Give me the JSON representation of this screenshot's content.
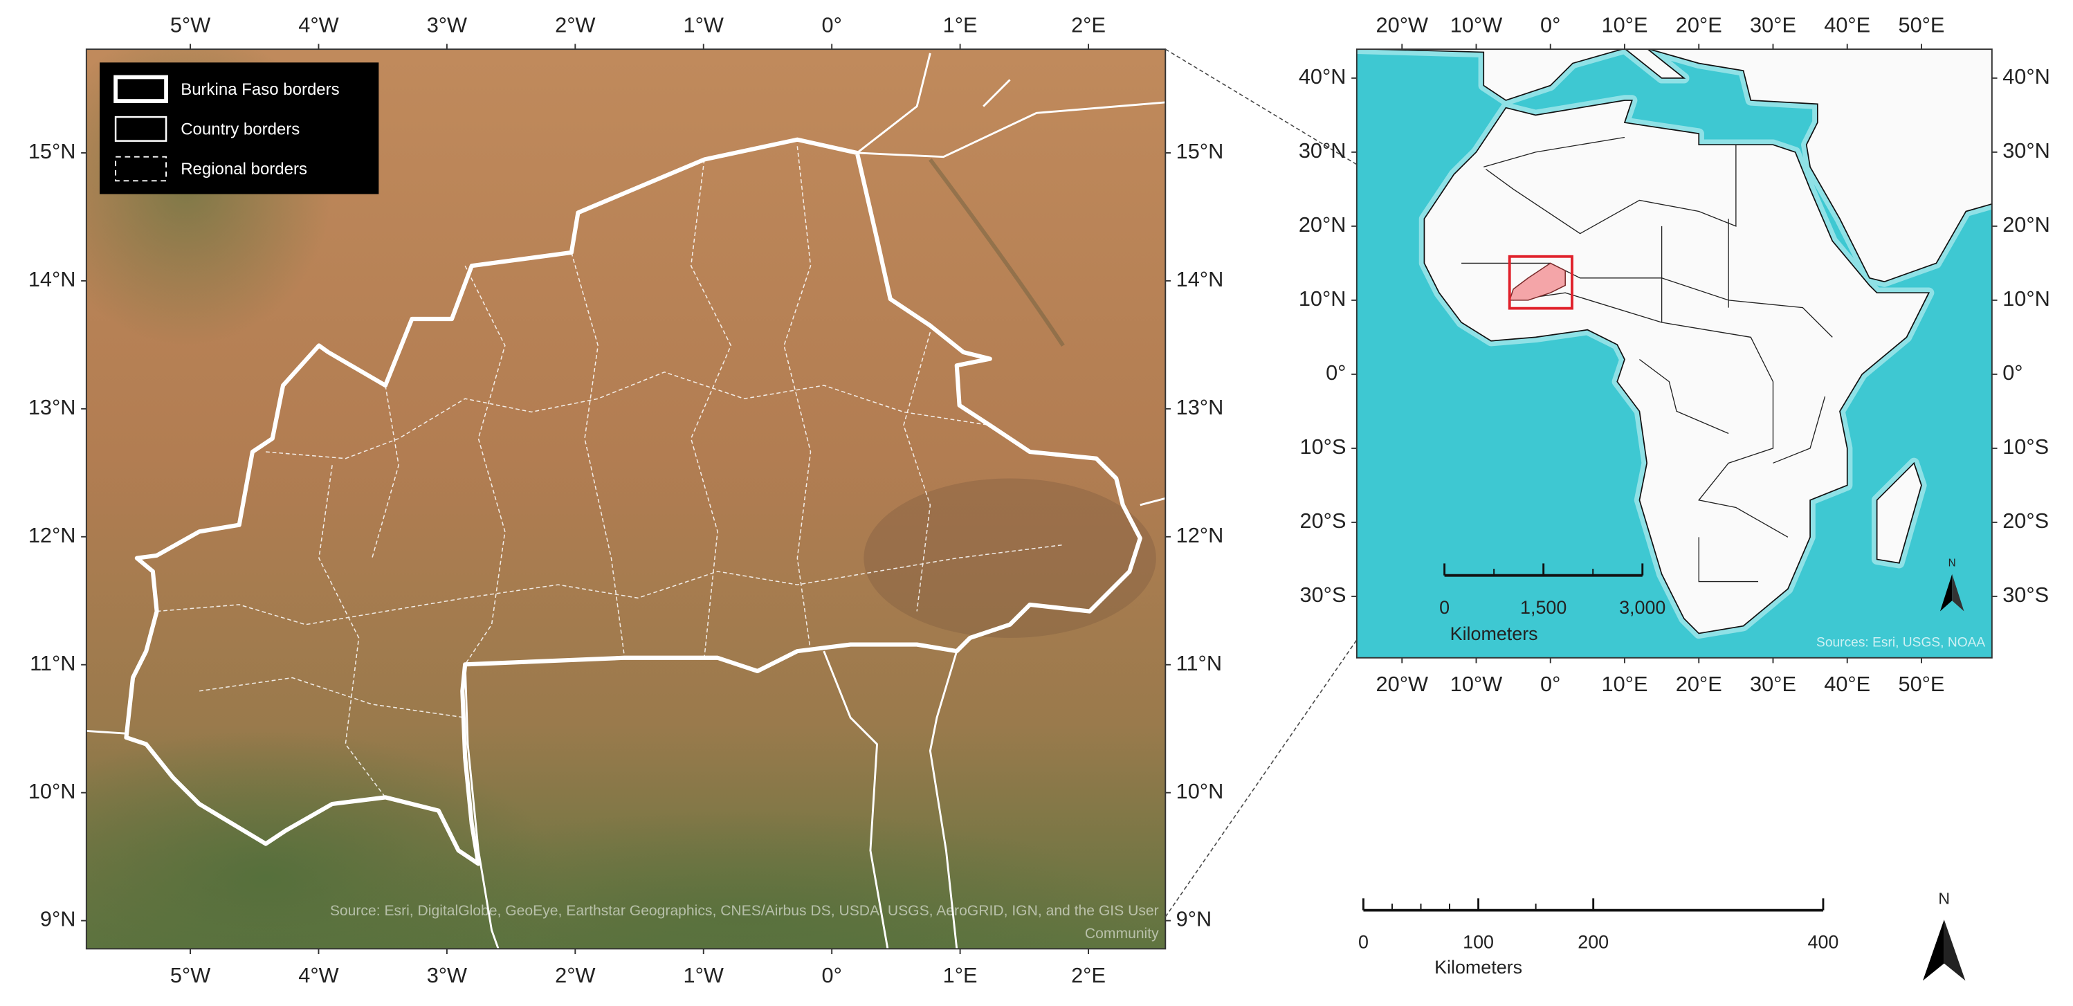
{
  "main_map": {
    "lon_range": [
      -5.81,
      2.6
    ],
    "lat_range": [
      8.78,
      15.81
    ],
    "lon_ticks": [
      {
        "value": -5,
        "label": "5°W"
      },
      {
        "value": -4,
        "label": "4°W"
      },
      {
        "value": -3,
        "label": "3°W"
      },
      {
        "value": -2,
        "label": "2°W"
      },
      {
        "value": -1,
        "label": "1°W"
      },
      {
        "value": 0,
        "label": "0°"
      },
      {
        "value": 1,
        "label": "1°E"
      },
      {
        "value": 2,
        "label": "2°E"
      }
    ],
    "lat_ticks": [
      {
        "value": 15,
        "label": "15°N"
      },
      {
        "value": 14,
        "label": "14°N"
      },
      {
        "value": 13,
        "label": "13°N"
      },
      {
        "value": 12,
        "label": "12°N"
      },
      {
        "value": 11,
        "label": "11°N"
      },
      {
        "value": 10,
        "label": "10°N"
      },
      {
        "value": 9,
        "label": "9°N"
      }
    ],
    "legend": [
      "Burkina Faso borders",
      "Country borders",
      "Regional borders"
    ],
    "attribution": [
      "Source: Esri, DigitalGlobe, GeoEye, Earthstar Geographics, CNES/Airbus DS, USDA, USGS, AeroGRID, IGN, and the GIS User",
      "Community"
    ],
    "scale_bar": {
      "ticks": [
        0,
        100,
        200,
        400
      ],
      "unit": "Kilometers"
    },
    "north": "N"
  },
  "inset_map": {
    "lon_range": [
      -26.1,
      59.5
    ],
    "lat_range": [
      -38.3,
      43.9
    ],
    "lon_ticks": [
      {
        "value": -20,
        "label": "20°W"
      },
      {
        "value": -10,
        "label": "10°W"
      },
      {
        "value": 0,
        "label": "0°"
      },
      {
        "value": 10,
        "label": "10°E"
      },
      {
        "value": 20,
        "label": "20°E"
      },
      {
        "value": 30,
        "label": "30°E"
      },
      {
        "value": 40,
        "label": "40°E"
      },
      {
        "value": 50,
        "label": "50°E"
      }
    ],
    "lat_ticks": [
      {
        "value": 40,
        "label": "40°N"
      },
      {
        "value": 30,
        "label": "30°N"
      },
      {
        "value": 20,
        "label": "20°N"
      },
      {
        "value": 10,
        "label": "10°N"
      },
      {
        "value": 0,
        "label": "0°"
      },
      {
        "value": -10,
        "label": "10°S"
      },
      {
        "value": -20,
        "label": "20°S"
      },
      {
        "value": -30,
        "label": "30°S"
      }
    ],
    "attribution": "Sources: Esri, USGS, NOAA",
    "scale_bar": {
      "ticks": [
        0,
        {
          "value": 1500,
          "label": "1,500"
        },
        {
          "value": 3000,
          "label": "3,000"
        }
      ],
      "unit": "Kilometers"
    },
    "north": "N"
  }
}
